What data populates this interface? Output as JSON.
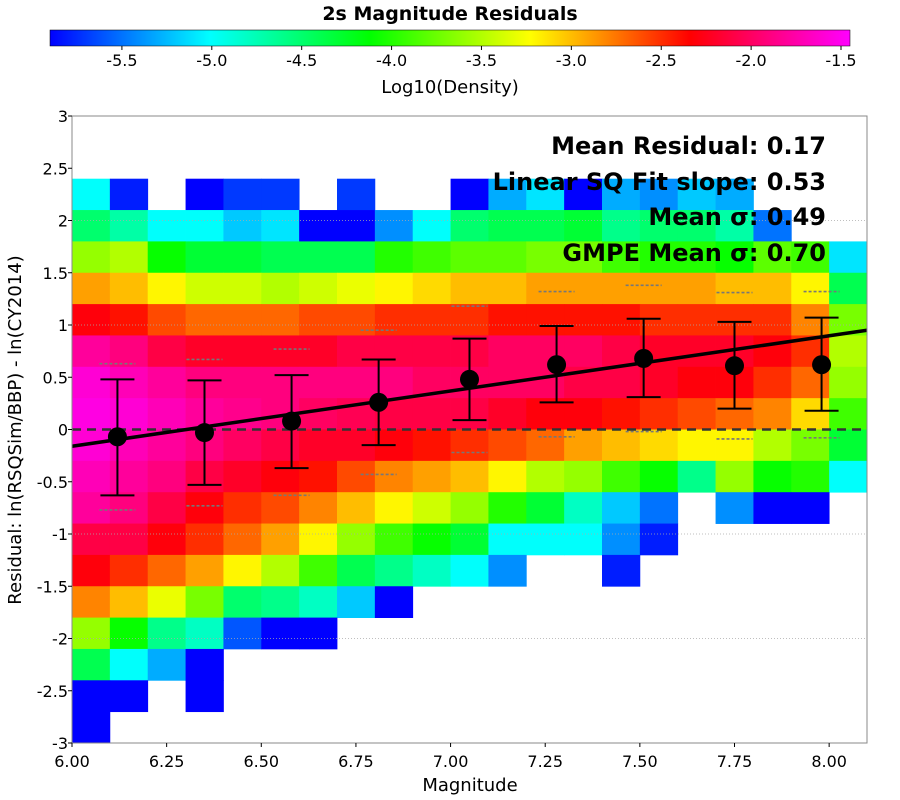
{
  "chart_data": {
    "type": "heatmap",
    "title": "2s Magnitude Residuals",
    "xlabel": "Magnitude",
    "ylabel": "Residual: ln(RSQSim/BBP) - ln(CY2014)",
    "xlim": [
      6.0,
      8.1
    ],
    "ylim": [
      -3,
      3
    ],
    "x_ticks": [
      "6.00",
      "6.25",
      "6.50",
      "6.75",
      "7.00",
      "7.25",
      "7.50",
      "7.75",
      "8.00"
    ],
    "y_ticks": [
      "3",
      "2.5",
      "2",
      "1.5",
      "1",
      "0.5",
      "0",
      "-0.5",
      "-1",
      "-1.5",
      "-2",
      "-2.5",
      "-3"
    ],
    "colorbar": {
      "label": "Log10(Density)",
      "range": [
        -5.9,
        -1.45
      ],
      "ticks": [
        "-5.5",
        "-5.0",
        "-4.5",
        "-4.0",
        "-3.5",
        "-3.0",
        "-2.5",
        "-2.0",
        "-1.5"
      ]
    },
    "annotations": [
      "Mean Residual: 0.17",
      "Linear SQ Fit slope: 0.53",
      "Mean σ: 0.49",
      "GMPE Mean σ: 0.70"
    ],
    "heatmap": {
      "x_bin_start": 6.0,
      "x_bin_width": 0.1,
      "y_bin_top": 2.4,
      "y_bin_height": 0.3,
      "rows": [
        [
          -5.0,
          -5.8,
          null,
          -5.9,
          -5.7,
          -5.7,
          null,
          -5.7,
          null,
          null,
          -5.9,
          -5.3,
          -5.1,
          -5.9,
          -5.3,
          -5.4,
          -5.2,
          -5.3,
          null,
          null,
          null
        ],
        [
          -4.5,
          -4.7,
          -5.0,
          -5.0,
          -5.2,
          -5.1,
          -5.9,
          -5.9,
          -5.4,
          -5.0,
          -4.5,
          -4.4,
          -4.4,
          -4.3,
          -4.6,
          -4.5,
          -4.5,
          -4.7,
          -5.5,
          null,
          null
        ],
        [
          -3.6,
          -3.5,
          -4.1,
          -4.3,
          -4.3,
          -4.4,
          -4.4,
          -4.4,
          -4.0,
          -3.9,
          -3.8,
          -3.8,
          -3.7,
          -3.7,
          -3.9,
          -4.0,
          -4.0,
          -4.1,
          -3.8,
          -3.9,
          -5.1
        ],
        [
          -2.9,
          -3.0,
          -3.2,
          -3.4,
          -3.4,
          -3.5,
          -3.4,
          -3.3,
          -3.2,
          -3.1,
          -3.0,
          -3.0,
          -2.9,
          -2.9,
          -2.9,
          -2.9,
          -2.9,
          -3.0,
          -3.0,
          -3.2,
          -4.4
        ],
        [
          -2.3,
          -2.4,
          -2.6,
          -2.7,
          -2.7,
          -2.7,
          -2.6,
          -2.6,
          -2.5,
          -2.5,
          -2.5,
          -2.4,
          -2.4,
          -2.4,
          -2.4,
          -2.5,
          -2.5,
          -2.5,
          -2.5,
          -2.8,
          -3.7
        ],
        [
          -1.8,
          -1.9,
          -2.1,
          -2.2,
          -2.2,
          -2.2,
          -2.2,
          -2.1,
          -2.1,
          -2.1,
          -2.1,
          -2.0,
          -2.0,
          -2.0,
          -2.1,
          -2.2,
          -2.2,
          -2.2,
          -2.3,
          -2.5,
          -3.5
        ],
        [
          -1.6,
          -1.7,
          -1.8,
          -1.9,
          -1.9,
          -1.9,
          -1.9,
          -1.9,
          -1.9,
          -2.0,
          -2.0,
          -2.0,
          -2.0,
          -2.1,
          -2.1,
          -2.2,
          -2.3,
          -2.3,
          -2.5,
          -2.7,
          -3.6
        ],
        [
          -1.55,
          -1.6,
          -1.7,
          -1.8,
          -1.85,
          -1.9,
          -2.0,
          -2.05,
          -2.1,
          -2.1,
          -2.1,
          -2.2,
          -2.3,
          -2.3,
          -2.4,
          -2.5,
          -2.6,
          -2.7,
          -2.8,
          -3.1,
          -3.9
        ],
        [
          -1.6,
          -1.7,
          -1.8,
          -1.9,
          -2.0,
          -2.1,
          -2.2,
          -2.2,
          -2.3,
          -2.4,
          -2.5,
          -2.6,
          -2.7,
          -2.9,
          -3.0,
          -3.1,
          -3.2,
          -3.2,
          -3.5,
          -3.7,
          -4.3
        ],
        [
          -1.7,
          -1.8,
          -1.9,
          -2.1,
          -2.2,
          -2.3,
          -2.4,
          -2.6,
          -2.8,
          -2.9,
          -3.0,
          -3.2,
          -3.5,
          -3.6,
          -3.9,
          -4.1,
          -4.6,
          -3.6,
          -4.1,
          -4.0,
          -5.0
        ],
        [
          -1.8,
          -1.9,
          -2.1,
          -2.3,
          -2.5,
          -2.6,
          -2.8,
          -3.0,
          -3.2,
          -3.4,
          -3.6,
          -4.0,
          -4.3,
          -4.8,
          -5.2,
          -5.5,
          null,
          -5.4,
          -5.9,
          -5.9,
          null
        ],
        [
          -2.1,
          -2.1,
          -2.3,
          -2.5,
          -2.7,
          -2.9,
          -3.2,
          -3.6,
          -3.9,
          -4.1,
          -4.3,
          -5.0,
          -5.0,
          -5.0,
          -5.4,
          -5.8,
          null,
          null,
          null,
          null,
          null
        ],
        [
          -2.3,
          -2.5,
          -2.7,
          -2.9,
          -3.2,
          -3.5,
          -3.9,
          -4.4,
          -4.6,
          -4.8,
          -5.0,
          -5.4,
          null,
          null,
          -5.8,
          null,
          null,
          null,
          null,
          null,
          null
        ],
        [
          -2.8,
          -3.0,
          -3.3,
          -3.7,
          -4.5,
          -4.6,
          -4.8,
          -5.2,
          -5.9,
          null,
          null,
          null,
          null,
          null,
          null,
          null,
          null,
          null,
          null,
          null,
          null
        ],
        [
          -3.6,
          -4.1,
          -4.6,
          -4.8,
          -5.6,
          -5.9,
          -5.9,
          null,
          null,
          null,
          null,
          null,
          null,
          null,
          null,
          null,
          null,
          null,
          null,
          null,
          null
        ],
        [
          -4.4,
          -5.0,
          -5.3,
          -5.9,
          null,
          null,
          null,
          null,
          null,
          null,
          null,
          null,
          null,
          null,
          null,
          null,
          null,
          null,
          null,
          null,
          null
        ],
        [
          -5.9,
          -5.9,
          null,
          -5.9,
          null,
          null,
          null,
          null,
          null,
          null,
          null,
          null,
          null,
          null,
          null,
          null,
          null,
          null,
          null,
          null,
          null
        ],
        [
          -5.9,
          null,
          null,
          null,
          null,
          null,
          null,
          null,
          null,
          null,
          null,
          null,
          null,
          null,
          null,
          null,
          null,
          null,
          null,
          null,
          null
        ]
      ]
    },
    "mean_points": {
      "x": [
        6.12,
        6.35,
        6.58,
        6.81,
        7.05,
        7.28,
        7.51,
        7.75,
        7.98
      ],
      "mean": [
        -0.07,
        -0.03,
        0.08,
        0.26,
        0.48,
        0.62,
        0.68,
        0.61,
        0.62
      ],
      "upper": [
        0.48,
        0.47,
        0.52,
        0.67,
        0.87,
        0.99,
        1.06,
        1.03,
        1.07
      ],
      "lower": [
        -0.63,
        -0.53,
        -0.37,
        -0.15,
        0.09,
        0.26,
        0.31,
        0.2,
        0.18
      ]
    },
    "gmpe_sigma": {
      "x": [
        6.12,
        6.35,
        6.58,
        6.81,
        7.05,
        7.28,
        7.51,
        7.75,
        7.98
      ],
      "upper": [
        0.63,
        0.67,
        0.77,
        0.95,
        1.18,
        1.32,
        1.38,
        1.31,
        1.32
      ],
      "lower": [
        -0.77,
        -0.73,
        -0.63,
        -0.43,
        -0.22,
        -0.07,
        -0.02,
        -0.09,
        -0.08
      ]
    },
    "fit_line": {
      "x": [
        6.0,
        8.1
      ],
      "y": [
        -0.16,
        0.95
      ]
    },
    "zero_line": 0,
    "grid": true,
    "colors": {
      "marker": "#000000",
      "fit": "#000000",
      "zero_line": "#333333",
      "gmpe_sigma": "#777777",
      "colormap": [
        "#0000ff",
        "#00ffff",
        "#00ff00",
        "#ffff00",
        "#ff0000",
        "#ff00ff"
      ]
    }
  }
}
